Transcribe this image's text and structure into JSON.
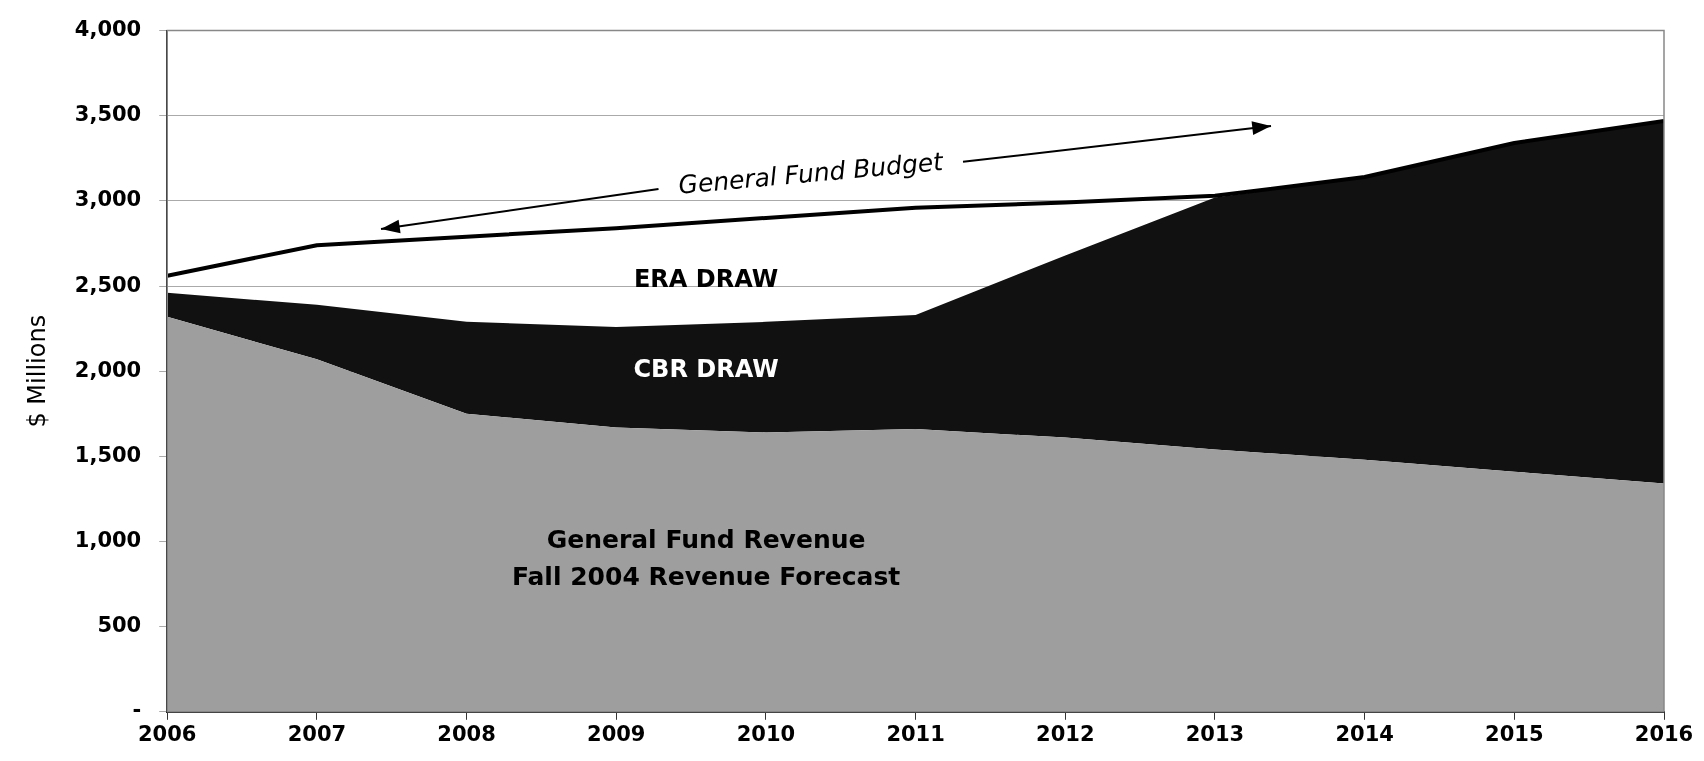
{
  "chart_data": {
    "type": "area",
    "stacked": true,
    "ylabel": "$ Millions",
    "grid": "y",
    "legend": false,
    "marker": "none",
    "x": [
      2006,
      2007,
      2008,
      2009,
      2010,
      2011,
      2012,
      2013,
      2014,
      2015,
      2016
    ],
    "xlim": [
      2006,
      2016
    ],
    "xticks": [
      2006,
      2007,
      2008,
      2009,
      2010,
      2011,
      2012,
      2013,
      2014,
      2015,
      2016
    ],
    "ylim": [
      0,
      4000
    ],
    "yticks": [
      {
        "value": 0,
        "label": "-"
      },
      500,
      {
        "value": 1000,
        "label": "1,000"
      },
      {
        "value": 1500,
        "label": "1,500"
      },
      {
        "value": 2000,
        "label": "2,000"
      },
      {
        "value": 2500,
        "label": "2,500"
      },
      {
        "value": 3000,
        "label": "3,000"
      },
      {
        "value": 3500,
        "label": "3,500"
      },
      {
        "value": 4000,
        "label": "4,000"
      }
    ],
    "series": [
      {
        "color": "#9e9e9e",
        "values": [
          2320,
          2070,
          1750,
          1670,
          1640,
          1660,
          1610,
          1540,
          1480,
          1410,
          1340
        ]
      },
      {
        "color": "#111111",
        "values": [
          140,
          320,
          540,
          590,
          650,
          670,
          1070,
          1480,
          1660,
          1930,
          2130
        ]
      },
      {
        "type": "line",
        "color": "#000000",
        "values": [
          2560,
          2740,
          2790,
          2840,
          2900,
          2960,
          2990,
          3030,
          3140,
          3340,
          3470
        ]
      }
    ],
    "annotations": [
      "ERA DRAW",
      "CBR DRAW",
      "General Fund Revenue",
      "Fall 2004 Revenue Forecast",
      "General Fund Budget"
    ]
  }
}
